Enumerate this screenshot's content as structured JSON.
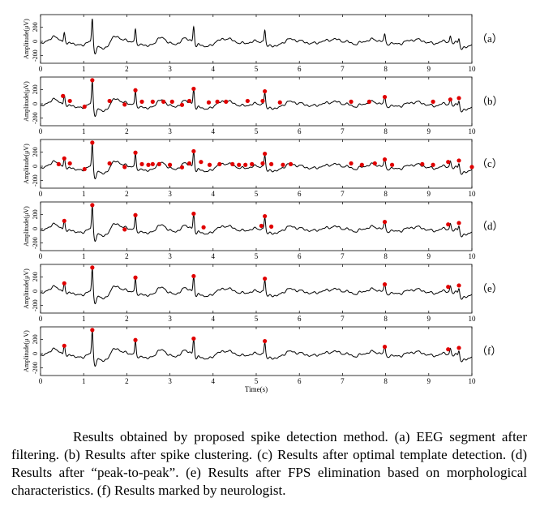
{
  "figure": {
    "xlabel": "Time(s)",
    "caption": "Results obtained by proposed spike detection method. (a) EEG segment after filtering. (b) Results after spike clustering. (c) Results after optimal template detection. (d) Results after “peak-to-peak”. (e) Results after FPS elimination based on morphological characteristics. (f) Results marked by neurologist."
  },
  "chart_data": {
    "type": "line",
    "title": "",
    "xlabel": "Time(s)",
    "xlim": [
      0,
      10
    ],
    "xticks": [
      0,
      1,
      2,
      3,
      4,
      5,
      6,
      7,
      8,
      9,
      10
    ],
    "yticks": [
      -200,
      0,
      200
    ],
    "line_color": "#000000",
    "marker_color": "#e00000",
    "eeg": {
      "spikes": [
        {
          "t": 0.55,
          "a": 130
        },
        {
          "t": 1.2,
          "a": 330
        },
        {
          "t": 2.2,
          "a": 190
        },
        {
          "t": 3.55,
          "a": 210
        },
        {
          "t": 5.2,
          "a": 175
        },
        {
          "t": 7.98,
          "a": 95
        },
        {
          "t": 9.5,
          "a": 80
        },
        {
          "t": 9.7,
          "a": 90
        }
      ],
      "waves": [
        {
          "t": 0.0,
          "a": -40
        },
        {
          "t": 0.3,
          "a": 60
        },
        {
          "t": 0.9,
          "a": -60
        },
        {
          "t": 1.45,
          "a": -110
        },
        {
          "t": 1.75,
          "a": 70
        },
        {
          "t": 2.5,
          "a": -70
        },
        {
          "t": 2.8,
          "a": 50
        },
        {
          "t": 3.1,
          "a": -50
        },
        {
          "t": 3.35,
          "a": 40
        },
        {
          "t": 3.85,
          "a": -80
        },
        {
          "t": 4.3,
          "a": 40
        },
        {
          "t": 4.7,
          "a": -30
        },
        {
          "t": 5.45,
          "a": -70
        },
        {
          "t": 5.8,
          "a": 30
        },
        {
          "t": 6.3,
          "a": -30
        },
        {
          "t": 6.8,
          "a": 30
        },
        {
          "t": 7.3,
          "a": -35
        },
        {
          "t": 7.7,
          "a": 25
        },
        {
          "t": 8.25,
          "a": -40
        },
        {
          "t": 8.7,
          "a": 25
        },
        {
          "t": 9.1,
          "a": -30
        },
        {
          "t": 9.85,
          "a": -90
        }
      ]
    },
    "panels": [
      {
        "label": "（a）",
        "ylabel": "Amplitude(μV)",
        "markers": []
      },
      {
        "label": "（b）",
        "ylabel": "Amplitude(μV)",
        "markers": [
          {
            "t": 0.52,
            "a": 110
          },
          {
            "t": 0.68,
            "a": 40
          },
          {
            "t": 1.02,
            "a": -40
          },
          {
            "t": 1.2,
            "a": 330
          },
          {
            "t": 1.6,
            "a": 40
          },
          {
            "t": 1.95,
            "a": -10
          },
          {
            "t": 2.2,
            "a": 190
          },
          {
            "t": 2.35,
            "a": 30
          },
          {
            "t": 2.6,
            "a": 30
          },
          {
            "t": 2.85,
            "a": 30
          },
          {
            "t": 3.05,
            "a": 30
          },
          {
            "t": 3.28,
            "a": -15
          },
          {
            "t": 3.45,
            "a": 40
          },
          {
            "t": 3.55,
            "a": 210
          },
          {
            "t": 3.9,
            "a": 20
          },
          {
            "t": 4.1,
            "a": 30
          },
          {
            "t": 4.3,
            "a": 30
          },
          {
            "t": 4.8,
            "a": 40
          },
          {
            "t": 5.15,
            "a": 40
          },
          {
            "t": 5.2,
            "a": 175
          },
          {
            "t": 5.55,
            "a": 20
          },
          {
            "t": 7.2,
            "a": 30
          },
          {
            "t": 7.62,
            "a": 30
          },
          {
            "t": 7.98,
            "a": 95
          },
          {
            "t": 9.1,
            "a": 30
          },
          {
            "t": 9.5,
            "a": 60
          },
          {
            "t": 9.7,
            "a": 80
          }
        ]
      },
      {
        "label": "（c）",
        "ylabel": "Amplitude(μV)",
        "markers": [
          {
            "t": 0.42,
            "a": 30
          },
          {
            "t": 0.55,
            "a": 110
          },
          {
            "t": 0.68,
            "a": 40
          },
          {
            "t": 1.02,
            "a": -40
          },
          {
            "t": 1.2,
            "a": 330
          },
          {
            "t": 1.6,
            "a": 40
          },
          {
            "t": 1.95,
            "a": -10
          },
          {
            "t": 2.2,
            "a": 190
          },
          {
            "t": 2.35,
            "a": 30
          },
          {
            "t": 2.5,
            "a": 20
          },
          {
            "t": 2.6,
            "a": 30
          },
          {
            "t": 2.75,
            "a": 30
          },
          {
            "t": 3.0,
            "a": 20
          },
          {
            "t": 3.28,
            "a": -15
          },
          {
            "t": 3.45,
            "a": 40
          },
          {
            "t": 3.55,
            "a": 210
          },
          {
            "t": 3.72,
            "a": 60
          },
          {
            "t": 3.92,
            "a": 20
          },
          {
            "t": 4.15,
            "a": 30
          },
          {
            "t": 4.45,
            "a": 30
          },
          {
            "t": 4.6,
            "a": 20
          },
          {
            "t": 4.75,
            "a": 20
          },
          {
            "t": 4.9,
            "a": 30
          },
          {
            "t": 5.15,
            "a": 40
          },
          {
            "t": 5.2,
            "a": 175
          },
          {
            "t": 5.35,
            "a": 30
          },
          {
            "t": 5.62,
            "a": 20
          },
          {
            "t": 5.8,
            "a": 30
          },
          {
            "t": 7.2,
            "a": 40
          },
          {
            "t": 7.45,
            "a": 20
          },
          {
            "t": 7.75,
            "a": 40
          },
          {
            "t": 7.98,
            "a": 95
          },
          {
            "t": 8.15,
            "a": 20
          },
          {
            "t": 8.85,
            "a": 30
          },
          {
            "t": 9.1,
            "a": 20
          },
          {
            "t": 9.45,
            "a": 60
          },
          {
            "t": 9.7,
            "a": 80
          },
          {
            "t": 10.0,
            "a": -10
          }
        ]
      },
      {
        "label": "（d）",
        "ylabel": "Amplitude(μV)",
        "markers": [
          {
            "t": 0.55,
            "a": 110
          },
          {
            "t": 1.2,
            "a": 330
          },
          {
            "t": 1.95,
            "a": -10
          },
          {
            "t": 2.2,
            "a": 190
          },
          {
            "t": 3.55,
            "a": 210
          },
          {
            "t": 3.78,
            "a": 20
          },
          {
            "t": 5.12,
            "a": 40
          },
          {
            "t": 5.2,
            "a": 175
          },
          {
            "t": 5.35,
            "a": 30
          },
          {
            "t": 7.98,
            "a": 95
          },
          {
            "t": 9.45,
            "a": 60
          },
          {
            "t": 9.7,
            "a": 80
          }
        ]
      },
      {
        "label": "（e）",
        "ylabel": "Amplitude(μV)",
        "markers": [
          {
            "t": 0.55,
            "a": 110
          },
          {
            "t": 1.2,
            "a": 330
          },
          {
            "t": 2.2,
            "a": 190
          },
          {
            "t": 3.55,
            "a": 210
          },
          {
            "t": 5.2,
            "a": 175
          },
          {
            "t": 7.98,
            "a": 95
          },
          {
            "t": 9.45,
            "a": 60
          },
          {
            "t": 9.7,
            "a": 80
          }
        ]
      },
      {
        "label": "（f）",
        "ylabel": "Amplitude(μ V)",
        "markers": [
          {
            "t": 0.55,
            "a": 110
          },
          {
            "t": 1.2,
            "a": 330
          },
          {
            "t": 2.2,
            "a": 190
          },
          {
            "t": 3.55,
            "a": 210
          },
          {
            "t": 5.2,
            "a": 175
          },
          {
            "t": 7.98,
            "a": 95
          },
          {
            "t": 9.45,
            "a": 60
          },
          {
            "t": 9.7,
            "a": 80
          }
        ]
      }
    ]
  }
}
